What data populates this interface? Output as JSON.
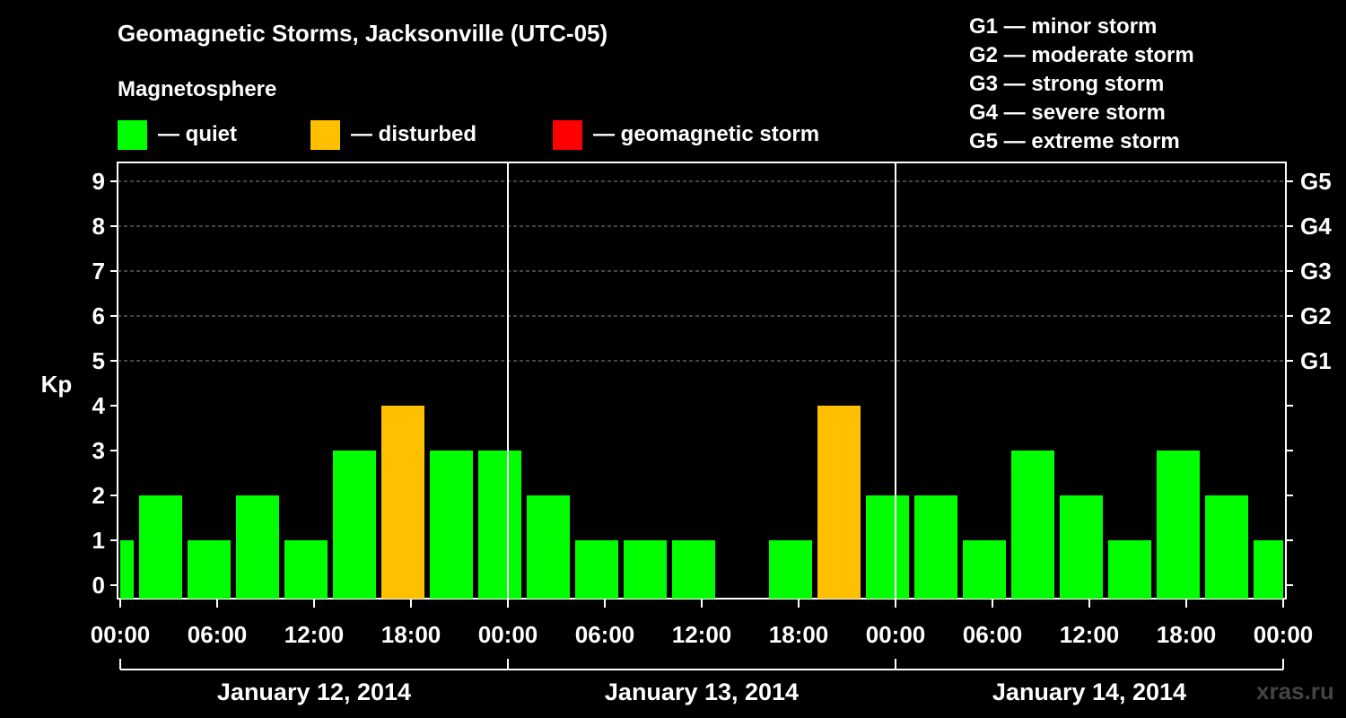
{
  "header": {
    "title": "Geomagnetic Storms, Jacksonville (UTC-05)",
    "subtitle": "Magnetosphere"
  },
  "legend": [
    {
      "label": "— quiet",
      "color": "#00FF00"
    },
    {
      "label": "— disturbed",
      "color": "#FFC000"
    },
    {
      "label": "— geomagnetic storm",
      "color": "#FF0000"
    }
  ],
  "g_scale": [
    "G1 — minor storm",
    "G2 — moderate storm",
    "G3 — strong storm",
    "G4 — severe storm",
    "G5 — extreme storm"
  ],
  "watermark": "xras.ru",
  "chart_data": {
    "type": "bar",
    "ylabel": "Kp",
    "ylim": [
      0,
      9
    ],
    "yticks": [
      "0",
      "1",
      "2",
      "3",
      "4",
      "5",
      "6",
      "7",
      "8",
      "9"
    ],
    "right_axis_labels": [
      {
        "kp": 5,
        "label": "G1"
      },
      {
        "kp": 6,
        "label": "G2"
      },
      {
        "kp": 7,
        "label": "G3"
      },
      {
        "kp": 8,
        "label": "G4"
      },
      {
        "kp": 9,
        "label": "G5"
      }
    ],
    "xticks": [
      "00:00",
      "06:00",
      "12:00",
      "18:00",
      "00:00",
      "06:00",
      "12:00",
      "18:00",
      "00:00",
      "06:00",
      "12:00",
      "18:00",
      "00:00"
    ],
    "x_range_hours": [
      0,
      72
    ],
    "days": [
      "January 12, 2014",
      "January 13, 2014",
      "January 14, 2014"
    ],
    "grid": "dashed horizontal at Kp 5–9",
    "bars": [
      {
        "start_hour": 0,
        "end_hour": 1,
        "kp": 1,
        "status": "quiet"
      },
      {
        "start_hour": 1,
        "end_hour": 4,
        "kp": 2,
        "status": "quiet"
      },
      {
        "start_hour": 4,
        "end_hour": 7,
        "kp": 1,
        "status": "quiet"
      },
      {
        "start_hour": 7,
        "end_hour": 10,
        "kp": 2,
        "status": "quiet"
      },
      {
        "start_hour": 10,
        "end_hour": 13,
        "kp": 1,
        "status": "quiet"
      },
      {
        "start_hour": 13,
        "end_hour": 16,
        "kp": 3,
        "status": "quiet"
      },
      {
        "start_hour": 16,
        "end_hour": 19,
        "kp": 4,
        "status": "disturbed"
      },
      {
        "start_hour": 19,
        "end_hour": 22,
        "kp": 3,
        "status": "quiet"
      },
      {
        "start_hour": 22,
        "end_hour": 25,
        "kp": 3,
        "status": "quiet"
      },
      {
        "start_hour": 25,
        "end_hour": 28,
        "kp": 2,
        "status": "quiet"
      },
      {
        "start_hour": 28,
        "end_hour": 31,
        "kp": 1,
        "status": "quiet"
      },
      {
        "start_hour": 31,
        "end_hour": 34,
        "kp": 1,
        "status": "quiet"
      },
      {
        "start_hour": 34,
        "end_hour": 37,
        "kp": 1,
        "status": "quiet"
      },
      {
        "start_hour": 37,
        "end_hour": 40,
        "kp": 0,
        "status": "quiet"
      },
      {
        "start_hour": 40,
        "end_hour": 43,
        "kp": 1,
        "status": "quiet"
      },
      {
        "start_hour": 43,
        "end_hour": 46,
        "kp": 4,
        "status": "disturbed"
      },
      {
        "start_hour": 46,
        "end_hour": 49,
        "kp": 2,
        "status": "quiet"
      },
      {
        "start_hour": 49,
        "end_hour": 52,
        "kp": 2,
        "status": "quiet"
      },
      {
        "start_hour": 52,
        "end_hour": 55,
        "kp": 1,
        "status": "quiet"
      },
      {
        "start_hour": 55,
        "end_hour": 58,
        "kp": 3,
        "status": "quiet"
      },
      {
        "start_hour": 58,
        "end_hour": 61,
        "kp": 2,
        "status": "quiet"
      },
      {
        "start_hour": 61,
        "end_hour": 64,
        "kp": 1,
        "status": "quiet"
      },
      {
        "start_hour": 64,
        "end_hour": 67,
        "kp": 3,
        "status": "quiet"
      },
      {
        "start_hour": 67,
        "end_hour": 70,
        "kp": 2,
        "status": "quiet"
      },
      {
        "start_hour": 70,
        "end_hour": 72,
        "kp": 1,
        "status": "quiet"
      }
    ],
    "status_colors": {
      "quiet": "#00FF00",
      "disturbed": "#FFC000",
      "storm": "#FF0000"
    }
  }
}
